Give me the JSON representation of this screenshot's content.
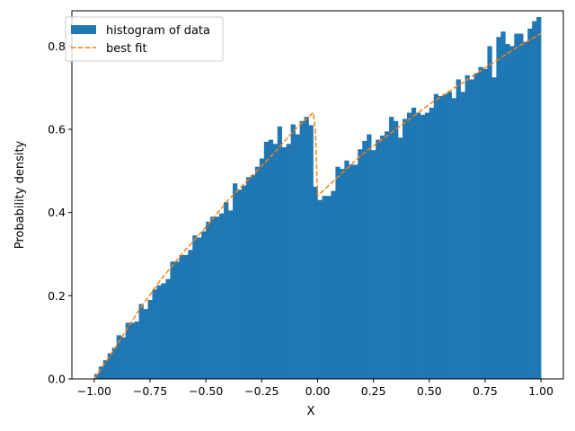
{
  "chart_data": {
    "type": "bar",
    "title": "",
    "xlabel": "X",
    "ylabel": "Probability density",
    "xlim": [
      -1.1,
      1.1
    ],
    "ylim": [
      0,
      0.885
    ],
    "x_ticks": [
      -1.0,
      -0.75,
      -0.5,
      -0.25,
      0.0,
      0.25,
      0.5,
      0.75,
      1.0
    ],
    "x_tick_labels": [
      "−1.00",
      "−0.75",
      "−0.50",
      "−0.25",
      "0.00",
      "0.25",
      "0.50",
      "0.75",
      "1.00"
    ],
    "y_ticks": [
      0.0,
      0.2,
      0.4,
      0.6,
      0.8
    ],
    "y_tick_labels": [
      "0.0",
      "0.2",
      "0.4",
      "0.6",
      "0.8"
    ],
    "grid": false,
    "legend_position": "top-left",
    "histogram": {
      "name": "histogram of data",
      "color": "#1f77b4",
      "bin_range": [
        -1.0,
        1.0
      ],
      "values": [
        0.012,
        0.03,
        0.045,
        0.062,
        0.075,
        0.105,
        0.1,
        0.135,
        0.135,
        0.138,
        0.18,
        0.168,
        0.19,
        0.215,
        0.225,
        0.23,
        0.24,
        0.282,
        0.282,
        0.298,
        0.298,
        0.31,
        0.345,
        0.34,
        0.355,
        0.378,
        0.39,
        0.39,
        0.398,
        0.425,
        0.405,
        0.47,
        0.455,
        0.465,
        0.485,
        0.49,
        0.51,
        0.53,
        0.57,
        0.575,
        0.565,
        0.607,
        0.557,
        0.565,
        0.612,
        0.588,
        0.62,
        0.63,
        0.61,
        0.462,
        0.43,
        0.44,
        0.44,
        0.452,
        0.51,
        0.505,
        0.525,
        0.515,
        0.515,
        0.552,
        0.572,
        0.588,
        0.55,
        0.575,
        0.585,
        0.595,
        0.63,
        0.62,
        0.58,
        0.625,
        0.64,
        0.652,
        0.64,
        0.635,
        0.64,
        0.652,
        0.685,
        0.68,
        0.685,
        0.69,
        0.675,
        0.72,
        0.69,
        0.73,
        0.72,
        0.735,
        0.75,
        0.745,
        0.8,
        0.725,
        0.822,
        0.835,
        0.805,
        0.8,
        0.83,
        0.83,
        0.81,
        0.842,
        0.86,
        0.87
      ]
    },
    "fit_line": {
      "name": "best fit",
      "color": "#ff7f0e",
      "style": "dashed",
      "x": [
        -1.0,
        -0.9,
        -0.8,
        -0.7,
        -0.6,
        -0.5,
        -0.4,
        -0.3,
        -0.2,
        -0.1,
        -0.02,
        -0.01,
        0.0,
        0.1,
        0.2,
        0.3,
        0.4,
        0.5,
        0.6,
        0.7,
        0.8,
        0.9,
        1.0
      ],
      "y": [
        0.0,
        0.08,
        0.165,
        0.24,
        0.305,
        0.365,
        0.43,
        0.485,
        0.54,
        0.6,
        0.64,
        0.6,
        0.44,
        0.49,
        0.54,
        0.58,
        0.62,
        0.66,
        0.695,
        0.73,
        0.765,
        0.8,
        0.83
      ]
    }
  }
}
